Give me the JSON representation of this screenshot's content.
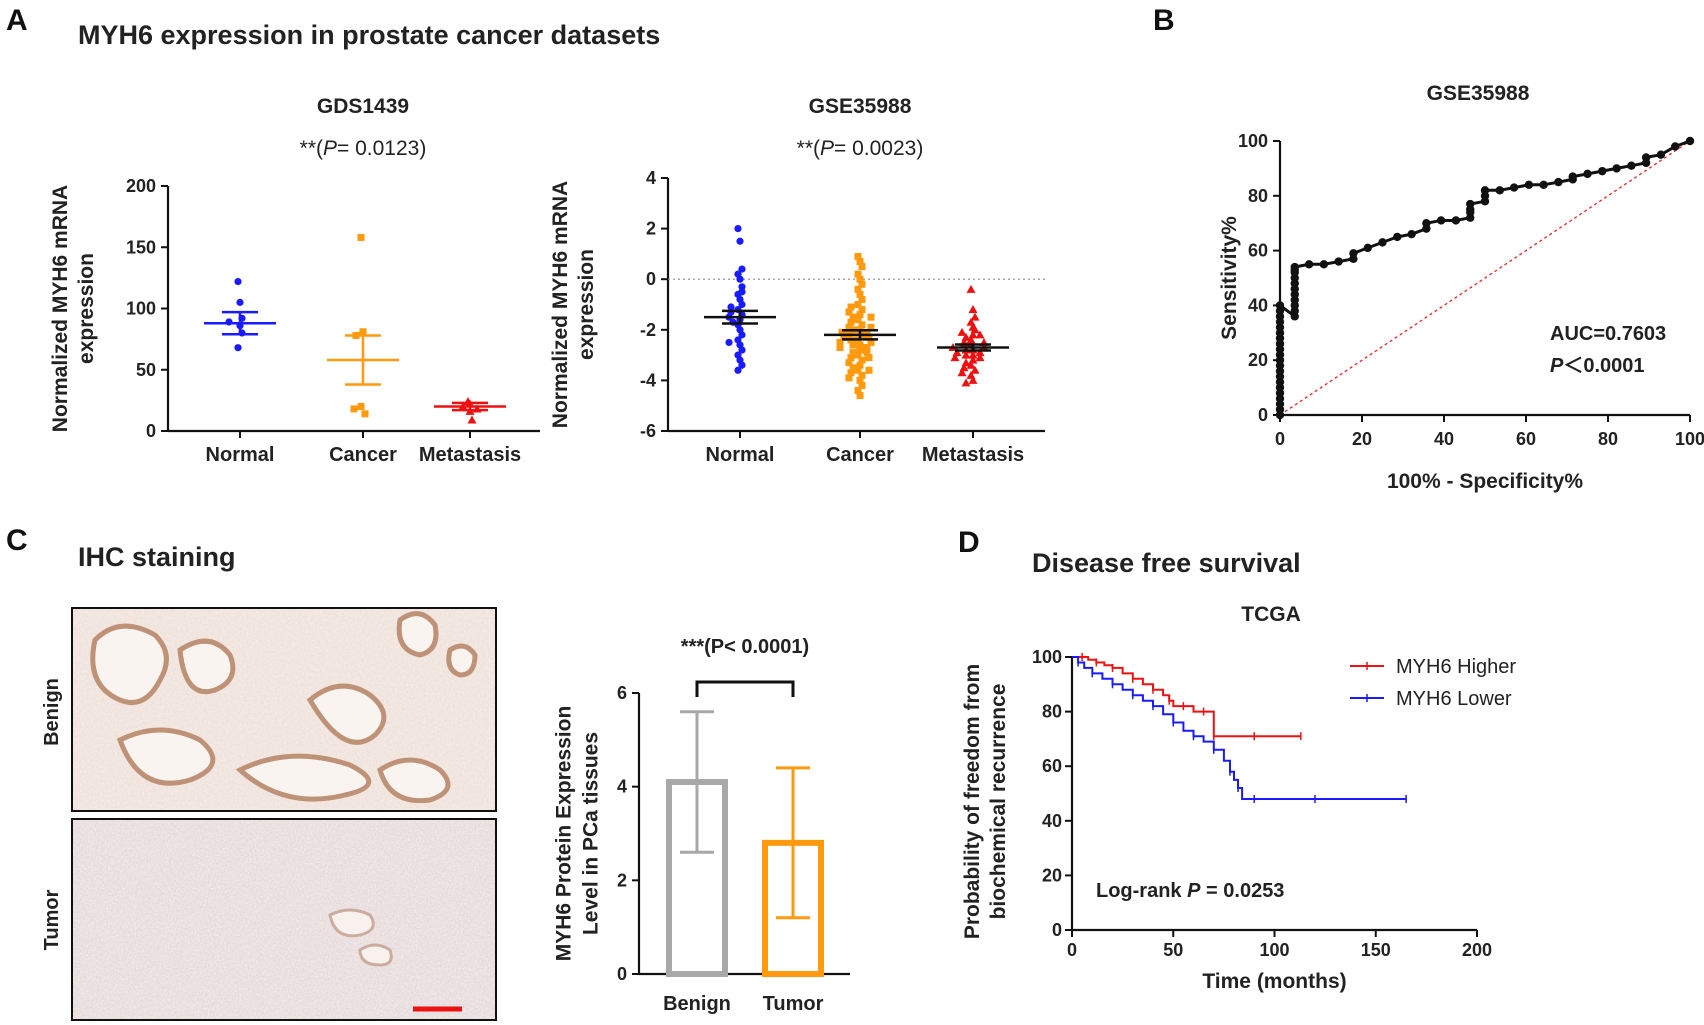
{
  "panels": {
    "A": {
      "letter": "A",
      "heading": "MYH6 expression in prostate cancer datasets"
    },
    "B": {
      "letter": "B"
    },
    "C": {
      "letter": "C",
      "heading": "IHC staining"
    },
    "D": {
      "letter": "D",
      "heading": "Disease free survival"
    }
  },
  "colors": {
    "blue": "#1a1aff",
    "orange": "#ff9a0e",
    "red": "#ee1111",
    "gray": "#a8a8a8",
    "black": "#111111"
  },
  "chart_data": [
    {
      "id": "gds1439",
      "type": "scatter",
      "title": "GDS1439",
      "pvalue_prefix": "**(",
      "pvalue_p": "P",
      "pvalue_text": "= 0.0123)",
      "ylabel": [
        "Normalized MYH6 mRNA",
        "expression"
      ],
      "ylim": [
        0,
        200
      ],
      "yticks": [
        0,
        50,
        100,
        150,
        200
      ],
      "categories": [
        "Normal",
        "Cancer",
        "Metastasis"
      ],
      "groups": [
        {
          "name": "Normal",
          "color": "#1a1aff",
          "marker": "circle",
          "mean": 88,
          "sem": 9,
          "points": [
            122,
            105,
            92,
            89,
            86,
            80,
            68
          ]
        },
        {
          "name": "Cancer",
          "color": "#ff9a0e",
          "marker": "square",
          "mean": 58,
          "sem": 20,
          "points": [
            158,
            81,
            78,
            20,
            18,
            14
          ]
        },
        {
          "name": "Metastasis",
          "color": "#ee1111",
          "marker": "triangle",
          "mean": 20,
          "sem": 3,
          "points": [
            24,
            22,
            20,
            18,
            16,
            9
          ]
        }
      ]
    },
    {
      "id": "gse35988",
      "type": "scatter",
      "title": "GSE35988",
      "pvalue_prefix": "**(",
      "pvalue_p": "P",
      "pvalue_text": "= 0.0023)",
      "ylabel": [
        "Normalized MYH6 mRNA",
        "expression"
      ],
      "ylim": [
        -6,
        4
      ],
      "yticks": [
        -6,
        -4,
        -2,
        0,
        2,
        4
      ],
      "reference_line": 0,
      "categories": [
        "Normal",
        "Cancer",
        "Metastasis"
      ],
      "groups": [
        {
          "name": "Normal",
          "color": "#1a1aff",
          "marker": "circle",
          "mean": -1.5,
          "sem": 0.25,
          "points": [
            2.0,
            1.5,
            0.4,
            0.2,
            0.0,
            -0.3,
            -0.6,
            -0.8,
            -1.0,
            -1.2,
            -1.3,
            -1.4,
            -1.5,
            -1.6,
            -1.7,
            -1.8,
            -2.0,
            -2.2,
            -2.4,
            -2.6,
            -2.8,
            -3.0,
            -3.2,
            -3.4,
            -3.6,
            -1.1,
            -0.5,
            -2.5
          ]
        },
        {
          "name": "Cancer",
          "color": "#ff9a0e",
          "marker": "square",
          "mean": -2.2,
          "sem": 0.18,
          "points": [
            0.9,
            0.7,
            0.5,
            0.2,
            0.0,
            -0.2,
            -0.4,
            -0.6,
            -0.8,
            -1.0,
            -1.1,
            -1.2,
            -1.3,
            -1.4,
            -1.5,
            -1.6,
            -1.7,
            -1.8,
            -1.9,
            -2.0,
            -2.0,
            -2.1,
            -2.1,
            -2.2,
            -2.2,
            -2.3,
            -2.3,
            -2.4,
            -2.4,
            -2.5,
            -2.5,
            -2.6,
            -2.6,
            -2.7,
            -2.8,
            -2.9,
            -3.0,
            -3.1,
            -3.2,
            -3.3,
            -3.4,
            -3.5,
            -3.6,
            -3.7,
            -3.8,
            -3.9,
            -4.0,
            -4.2,
            -4.4,
            -4.6,
            -1.9,
            -2.7,
            -3.1,
            -1.5,
            -2.9,
            -3.6
          ]
        },
        {
          "name": "Metastasis",
          "color": "#ee1111",
          "marker": "triangle",
          "mean": -2.7,
          "sem": 0.12,
          "points": [
            -0.4,
            -1.2,
            -1.5,
            -1.7,
            -1.9,
            -2.0,
            -2.1,
            -2.2,
            -2.3,
            -2.4,
            -2.5,
            -2.5,
            -2.6,
            -2.6,
            -2.7,
            -2.7,
            -2.8,
            -2.8,
            -2.9,
            -3.0,
            -3.0,
            -3.1,
            -3.2,
            -3.3,
            -3.4,
            -3.5,
            -3.6,
            -3.8,
            -4.0,
            -4.1,
            -2.2,
            -3.1,
            -2.9,
            -3.7
          ]
        }
      ]
    },
    {
      "id": "roc",
      "type": "line",
      "title": "GSE35988",
      "xlabel": "100% - Specificity%",
      "ylabel": "Sensitivity%",
      "xlim": [
        0,
        100
      ],
      "ylim": [
        0,
        100
      ],
      "xticks": [
        0,
        20,
        40,
        60,
        80,
        100
      ],
      "yticks": [
        0,
        20,
        40,
        60,
        80,
        100
      ],
      "annotation_auc": "AUC=0.7603",
      "annotation_p_italic": "P",
      "annotation_p_rest": "＜0.0001",
      "series": [
        {
          "name": "ROC",
          "color": "#111111",
          "x": [
            0,
            0,
            0,
            0,
            0,
            0,
            0,
            0,
            0,
            0,
            0,
            0,
            0,
            0,
            0,
            0,
            0,
            0,
            0,
            0,
            0,
            3.6,
            3.6,
            3.6,
            3.6,
            3.6,
            3.6,
            3.6,
            3.6,
            3.6,
            3.6,
            3.6,
            7.1,
            10.7,
            14.3,
            17.9,
            17.9,
            21.4,
            25,
            28.6,
            32.1,
            35.7,
            35.7,
            39.3,
            42.9,
            46.4,
            46.4,
            46.4,
            46.4,
            50,
            50,
            50,
            53.6,
            57.1,
            60.7,
            64.3,
            67.9,
            71.4,
            71.4,
            75,
            78.6,
            82.1,
            85.7,
            89.3,
            89.3,
            92.9,
            96.4,
            100
          ],
          "y": [
            0,
            2,
            4,
            6,
            8,
            10,
            12,
            14,
            16,
            18,
            20,
            22,
            24,
            26,
            28,
            30,
            32,
            34,
            36,
            38,
            40,
            36,
            38,
            40,
            42,
            44,
            46,
            48,
            50,
            52,
            53,
            54,
            55,
            55,
            56,
            57,
            59,
            61,
            63,
            65,
            66,
            68,
            70,
            71,
            71,
            72,
            74,
            75,
            77,
            78,
            80,
            82,
            82,
            83,
            84,
            84,
            85,
            86,
            87,
            88,
            89,
            90,
            91,
            92,
            94,
            95,
            98,
            100
          ]
        },
        {
          "name": "Reference",
          "color": "#ee2222",
          "dashed": true,
          "x": [
            0,
            100
          ],
          "y": [
            0,
            100
          ]
        }
      ]
    },
    {
      "id": "ihc_bar",
      "type": "bar",
      "title": "",
      "pvalue_text": "***(P< 0.0001)",
      "ylabel": [
        "MYH6 Protein Expression",
        "Level in PCa tissues"
      ],
      "ylim": [
        0,
        6
      ],
      "yticks": [
        0,
        2,
        4,
        6
      ],
      "categories": [
        "Benign",
        "Tumor"
      ],
      "values": [
        4.1,
        2.8
      ],
      "sd": [
        1.5,
        1.6
      ],
      "colors": [
        "#a8a8a8",
        "#ff9a0e"
      ]
    },
    {
      "id": "km",
      "type": "line",
      "title": "TCGA",
      "xlabel": "Time (months)",
      "ylabel": [
        "Probability of freedom from",
        "biochemical recurrence"
      ],
      "xlim": [
        0,
        200
      ],
      "ylim": [
        0,
        100
      ],
      "xticks": [
        0,
        50,
        100,
        150,
        200
      ],
      "yticks": [
        0,
        20,
        40,
        60,
        80,
        100
      ],
      "annotation_prefix": "Log-rank ",
      "annotation_p": "P",
      "annotation_rest": " = 0.0253",
      "series": [
        {
          "name": "MYH6 Higher",
          "color": "#ee1111",
          "x": [
            0,
            5,
            8,
            12,
            16,
            20,
            25,
            30,
            35,
            40,
            45,
            48,
            50,
            55,
            60,
            65,
            70,
            70,
            80,
            90,
            100,
            113
          ],
          "y": [
            100,
            100,
            99,
            98,
            97,
            96,
            94,
            92,
            90,
            88,
            86,
            84,
            82,
            82,
            80,
            80,
            80,
            71,
            71,
            71,
            71,
            71
          ]
        },
        {
          "name": "MYH6 Lower",
          "color": "#1a1aff",
          "x": [
            0,
            3,
            6,
            10,
            15,
            20,
            25,
            30,
            35,
            40,
            45,
            50,
            55,
            60,
            65,
            70,
            75,
            78,
            80,
            82,
            84,
            90,
            100,
            120,
            140,
            165
          ],
          "y": [
            100,
            98,
            96,
            94,
            92,
            90,
            88,
            86,
            84,
            82,
            79,
            76,
            73,
            71,
            69,
            66,
            62,
            58,
            55,
            52,
            48,
            48,
            48,
            48,
            48,
            48
          ]
        }
      ]
    }
  ],
  "ihc": {
    "images": [
      {
        "label": "Benign"
      },
      {
        "label": "Tumor"
      }
    ],
    "scale_bar_color": "#ee1111"
  }
}
